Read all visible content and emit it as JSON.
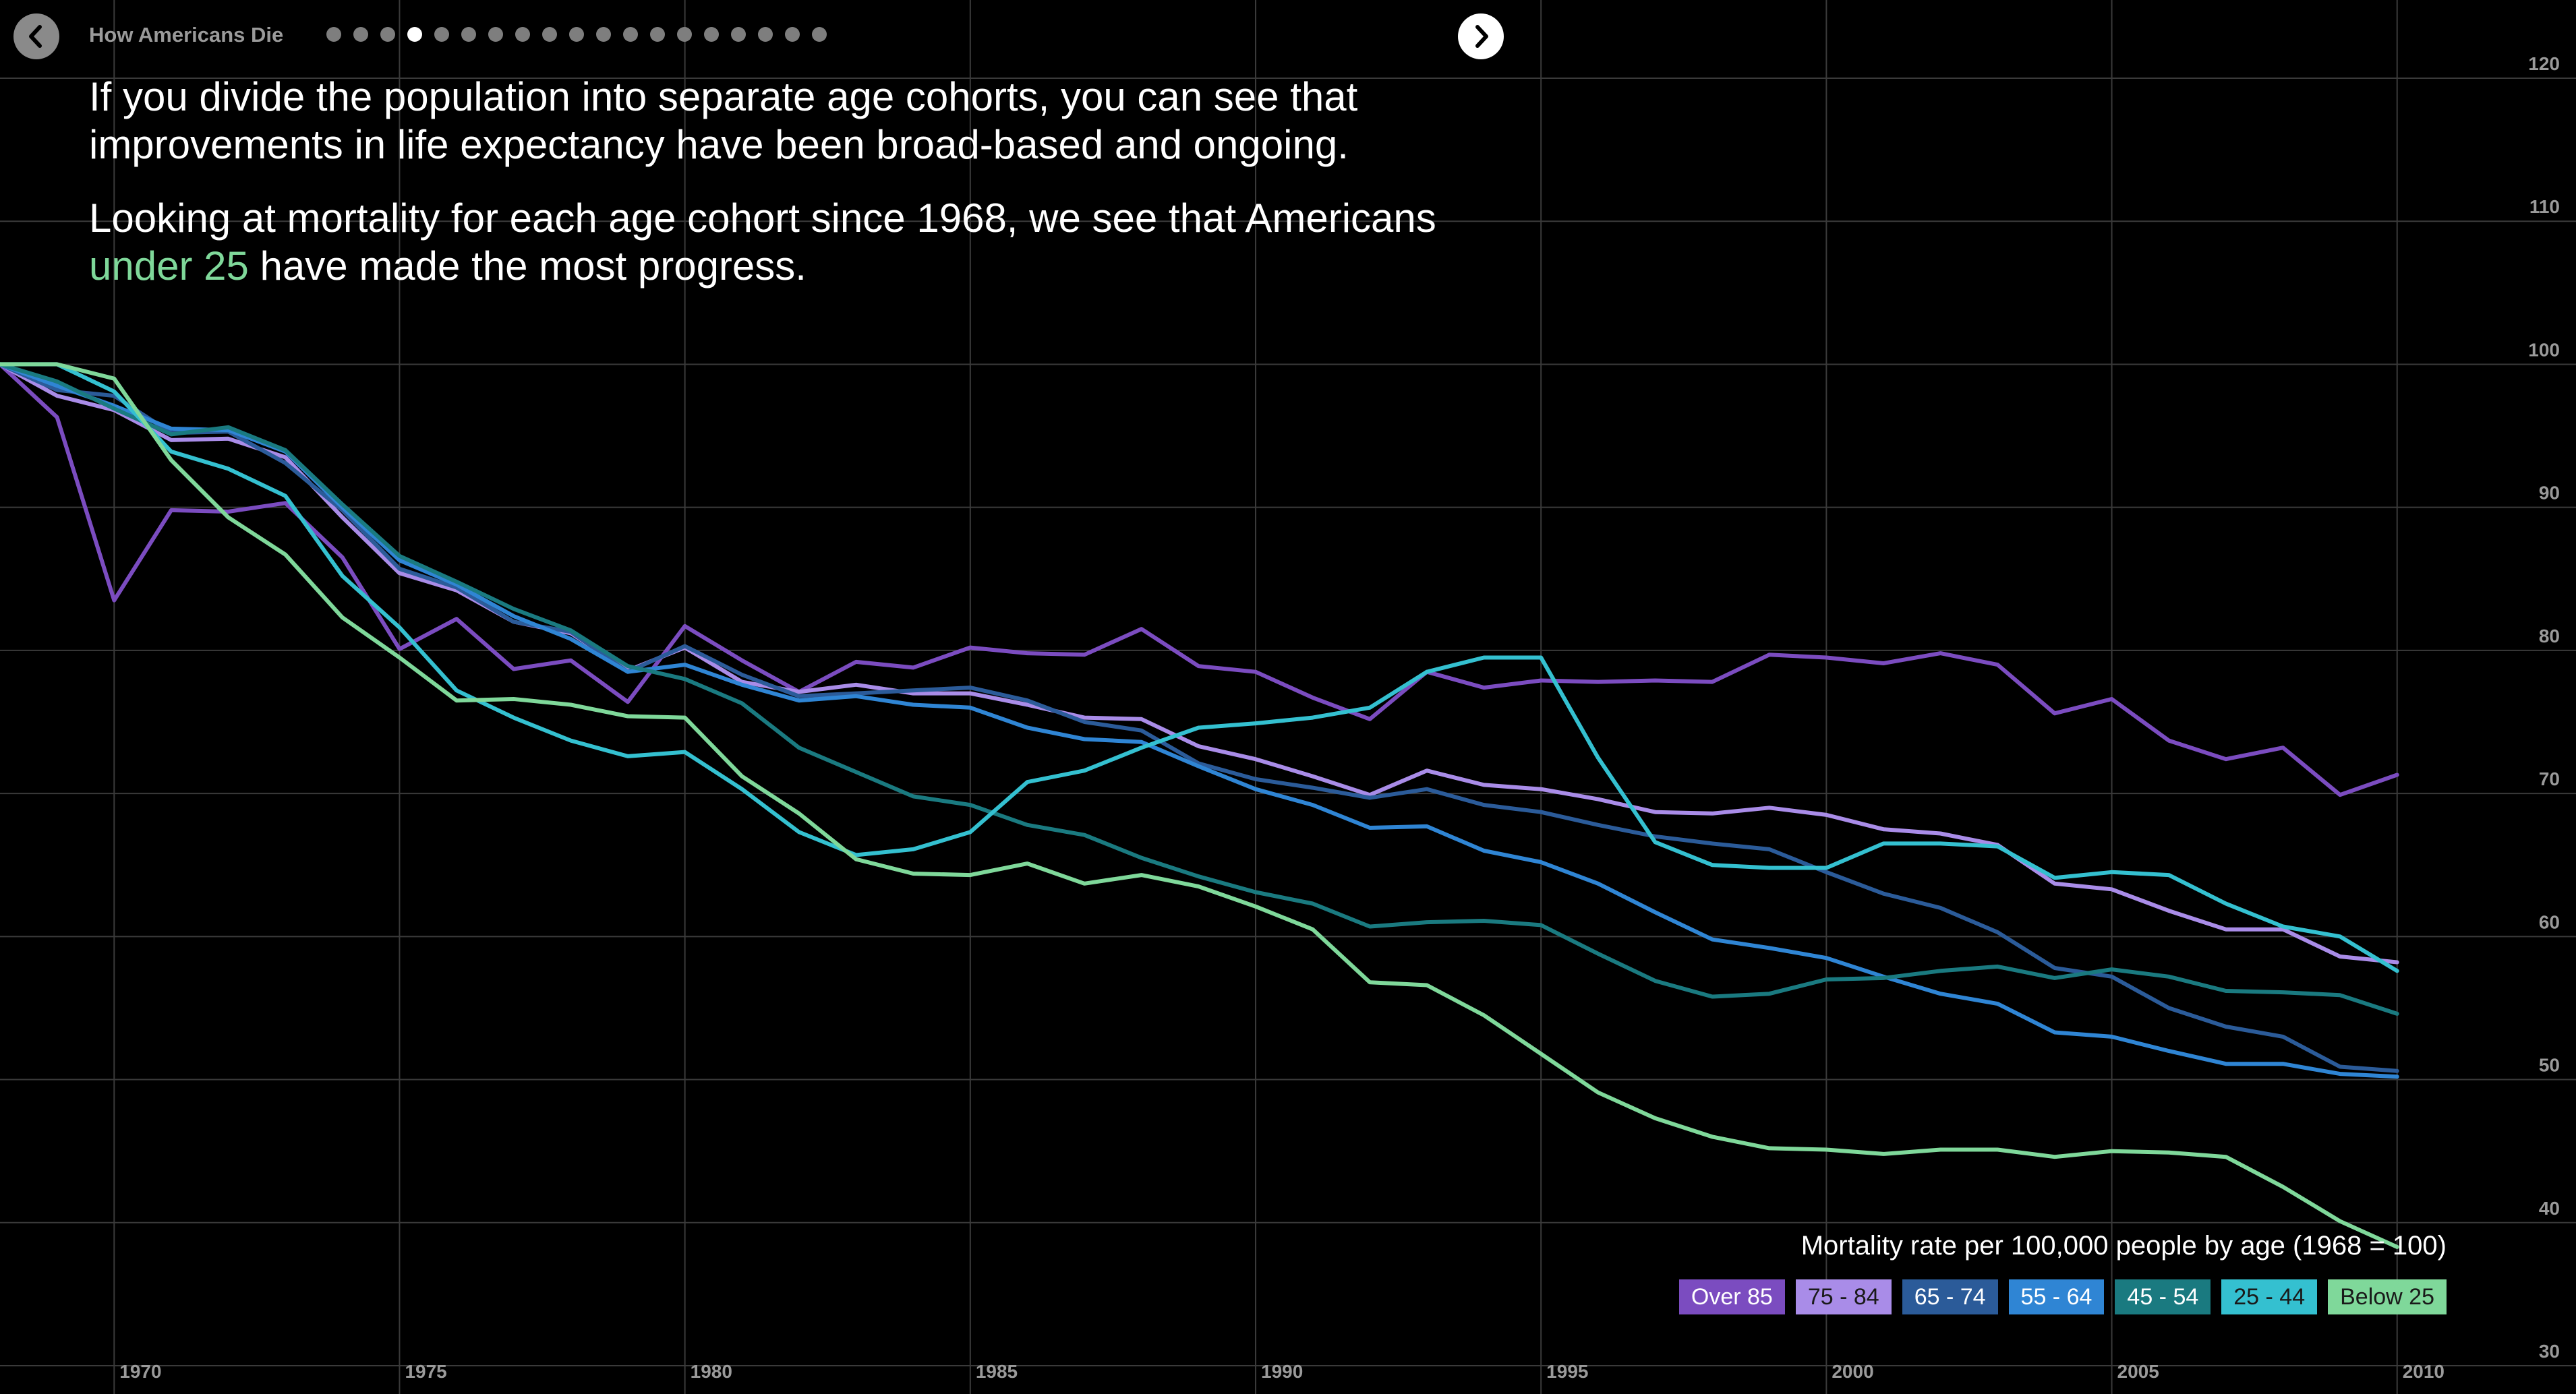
{
  "header": {
    "title": "How Americans Die",
    "dot_count": 19,
    "active_dot": 3
  },
  "narrative": {
    "p1": "If you divide the population into separate age cohorts, you can see that improvements in life expectancy have been broad-based and ongoing.",
    "p2_pre": "Looking at mortality for each age cohort since 1968, we see that Americans ",
    "p2_highlight": "under 25",
    "p2_post": " have made the most progress."
  },
  "legend": {
    "title": "Mortality rate per 100,000 people by age (1968 = 100)"
  },
  "colors": {
    "background": "#000000",
    "grid": "#3a3a3a",
    "axis_text": "#9a9a9a",
    "highlight": "#7fd89a"
  },
  "chart_data": {
    "type": "line",
    "title": "Mortality rate per 100,000 people by age (1968 = 100)",
    "xlim": [
      1968,
      2012
    ],
    "ylim": [
      30,
      120
    ],
    "x_ticks": [
      1970,
      1975,
      1980,
      1985,
      1990,
      1995,
      2000,
      2005,
      2010
    ],
    "y_ticks": [
      30,
      40,
      50,
      60,
      70,
      80,
      90,
      100,
      110,
      120
    ],
    "grid": true,
    "legend_position": "bottom-right",
    "series": [
      {
        "name": "Over 85",
        "color": "#7b4cc0",
        "text_color": "#ffffff",
        "x": [
          1968,
          1969,
          1970,
          1971,
          1972,
          1973,
          1974,
          1975,
          1976,
          1977,
          1978,
          1979,
          1980,
          1981,
          1982,
          1983,
          1984,
          1985,
          1986,
          1987,
          1988,
          1989,
          1990,
          1991,
          1992,
          1993,
          1994,
          1995,
          1996,
          1997,
          1998,
          1999,
          2000,
          2001,
          2002,
          2003,
          2004,
          2005,
          2006,
          2007,
          2008,
          2009,
          2010
        ],
        "values": [
          100,
          96.3,
          83.5,
          89.8,
          89.7,
          90.3,
          86.5,
          80.1,
          82.2,
          78.7,
          79.3,
          76.4,
          81.7,
          79.3,
          77.1,
          79.2,
          78.8,
          80.2,
          79.8,
          79.7,
          81.5,
          78.9,
          78.5,
          76.7,
          75.2,
          78.5,
          77.4,
          77.9,
          77.8,
          77.9,
          77.8,
          79.7,
          79.5,
          79.1,
          79.8,
          79.0,
          75.6,
          76.6,
          73.7,
          72.4,
          73.2,
          69.9,
          71.3
        ]
      },
      {
        "name": "75 - 84",
        "color": "#a98ce8",
        "text_color": "#1a1a1a",
        "x": [
          1968,
          1969,
          1970,
          1971,
          1972,
          1973,
          1974,
          1975,
          1976,
          1977,
          1978,
          1979,
          1980,
          1981,
          1982,
          1983,
          1984,
          1985,
          1986,
          1987,
          1988,
          1989,
          1990,
          1991,
          1992,
          1993,
          1994,
          1995,
          1996,
          1997,
          1998,
          1999,
          2000,
          2001,
          2002,
          2003,
          2004,
          2005,
          2006,
          2007,
          2008,
          2009,
          2010
        ],
        "values": [
          100,
          97.8,
          96.8,
          94.7,
          94.8,
          93.5,
          89.3,
          85.4,
          84.2,
          82.0,
          81.2,
          78.6,
          80.2,
          77.8,
          77.1,
          77.6,
          77.0,
          77.0,
          76.2,
          75.3,
          75.2,
          73.3,
          72.4,
          71.2,
          69.9,
          71.6,
          70.6,
          70.3,
          69.6,
          68.7,
          68.6,
          69.0,
          68.5,
          67.5,
          67.2,
          66.4,
          63.7,
          63.3,
          61.8,
          60.5,
          60.5,
          58.6,
          58.2
        ]
      },
      {
        "name": "65 - 74",
        "color": "#2b5b99",
        "text_color": "#ffffff",
        "x": [
          1968,
          1969,
          1970,
          1971,
          1972,
          1973,
          1974,
          1975,
          1976,
          1977,
          1978,
          1979,
          1980,
          1981,
          1982,
          1983,
          1984,
          1985,
          1986,
          1987,
          1988,
          1989,
          1990,
          1991,
          1992,
          1993,
          1994,
          1995,
          1996,
          1997,
          1998,
          1999,
          2000,
          2001,
          2002,
          2003,
          2004,
          2005,
          2006,
          2007,
          2008,
          2009,
          2010
        ],
        "values": [
          100,
          98.2,
          97.8,
          95.2,
          95.3,
          93.1,
          89.8,
          85.7,
          84.4,
          82.0,
          81.3,
          78.5,
          80.3,
          78.3,
          76.8,
          77.0,
          77.2,
          77.4,
          76.5,
          75.0,
          74.4,
          72.1,
          71.0,
          70.4,
          69.7,
          70.3,
          69.2,
          68.7,
          67.8,
          67.0,
          66.5,
          66.1,
          64.5,
          63.0,
          62.0,
          60.3,
          57.8,
          57.2,
          55.0,
          53.7,
          53.0,
          50.9,
          50.6
        ]
      },
      {
        "name": "55 - 64",
        "color": "#2f85d4",
        "text_color": "#ffffff",
        "x": [
          1968,
          1969,
          1970,
          1971,
          1972,
          1973,
          1974,
          1975,
          1976,
          1977,
          1978,
          1979,
          1980,
          1981,
          1982,
          1983,
          1984,
          1985,
          1986,
          1987,
          1988,
          1989,
          1990,
          1991,
          1992,
          1993,
          1994,
          1995,
          1996,
          1997,
          1998,
          1999,
          2000,
          2001,
          2002,
          2003,
          2004,
          2005,
          2006,
          2007,
          2008,
          2009,
          2010
        ],
        "values": [
          100,
          98.5,
          97.1,
          95.5,
          95.4,
          93.9,
          90.0,
          86.3,
          84.6,
          82.4,
          80.8,
          78.5,
          79.0,
          77.6,
          76.5,
          76.8,
          76.2,
          76.0,
          74.6,
          73.8,
          73.6,
          71.9,
          70.3,
          69.2,
          67.6,
          67.7,
          66.0,
          65.2,
          63.7,
          61.7,
          59.8,
          59.2,
          58.5,
          57.2,
          56.0,
          55.3,
          53.3,
          53.0,
          52.0,
          51.1,
          51.1,
          50.4,
          50.2
        ]
      },
      {
        "name": "45 - 54",
        "color": "#1a7a80",
        "text_color": "#ffffff",
        "x": [
          1968,
          1969,
          1970,
          1971,
          1972,
          1973,
          1974,
          1975,
          1976,
          1977,
          1978,
          1979,
          1980,
          1981,
          1982,
          1983,
          1984,
          1985,
          1986,
          1987,
          1988,
          1989,
          1990,
          1991,
          1992,
          1993,
          1994,
          1995,
          1996,
          1997,
          1998,
          1999,
          2000,
          2001,
          2002,
          2003,
          2004,
          2005,
          2006,
          2007,
          2008,
          2009,
          2010
        ],
        "values": [
          100,
          98.8,
          96.9,
          95.1,
          95.6,
          94.0,
          90.2,
          86.6,
          84.8,
          82.9,
          81.4,
          78.9,
          78.0,
          76.3,
          73.2,
          71.5,
          69.8,
          69.2,
          67.8,
          67.1,
          65.5,
          64.2,
          63.1,
          62.3,
          60.7,
          61.0,
          61.1,
          60.8,
          58.8,
          56.9,
          55.8,
          56.0,
          57.0,
          57.1,
          57.6,
          57.9,
          57.1,
          57.7,
          57.2,
          56.2,
          56.1,
          55.9,
          54.6
        ]
      },
      {
        "name": "25 - 44",
        "color": "#34c0d0",
        "text_color": "#1a1a1a",
        "x": [
          1968,
          1969,
          1970,
          1971,
          1972,
          1973,
          1974,
          1975,
          1976,
          1977,
          1978,
          1979,
          1980,
          1981,
          1982,
          1983,
          1984,
          1985,
          1986,
          1987,
          1988,
          1989,
          1990,
          1991,
          1992,
          1993,
          1994,
          1995,
          1996,
          1997,
          1998,
          1999,
          2000,
          2001,
          2002,
          2003,
          2004,
          2005,
          2006,
          2007,
          2008,
          2009,
          2010
        ],
        "values": [
          100,
          100,
          98.1,
          93.9,
          92.7,
          90.8,
          85.2,
          81.6,
          77.2,
          75.3,
          73.7,
          72.6,
          72.9,
          70.3,
          67.3,
          65.7,
          66.1,
          67.3,
          70.8,
          71.6,
          73.2,
          74.6,
          74.9,
          75.3,
          76.0,
          78.5,
          79.5,
          79.5,
          72.5,
          66.6,
          65.0,
          64.8,
          64.8,
          66.5,
          66.5,
          66.3,
          64.1,
          64.5,
          64.3,
          62.3,
          60.7,
          60.0,
          57.6
        ]
      },
      {
        "name": "Below 25",
        "color": "#7fd89a",
        "text_color": "#1a1a1a",
        "x": [
          1968,
          1969,
          1970,
          1971,
          1972,
          1973,
          1974,
          1975,
          1976,
          1977,
          1978,
          1979,
          1980,
          1981,
          1982,
          1983,
          1984,
          1985,
          1986,
          1987,
          1988,
          1989,
          1990,
          1991,
          1992,
          1993,
          1994,
          1995,
          1996,
          1997,
          1998,
          1999,
          2000,
          2001,
          2002,
          2003,
          2004,
          2005,
          2006,
          2007,
          2008,
          2009,
          2010
        ],
        "values": [
          100,
          100,
          99.0,
          93.3,
          89.3,
          86.7,
          82.3,
          79.5,
          76.5,
          76.6,
          76.2,
          75.4,
          75.3,
          71.2,
          68.6,
          65.4,
          64.4,
          64.3,
          65.1,
          63.7,
          64.3,
          63.5,
          62.1,
          60.5,
          56.8,
          56.6,
          54.5,
          51.8,
          49.1,
          47.3,
          46.0,
          45.2,
          45.1,
          44.8,
          45.1,
          45.1,
          44.6,
          45.0,
          44.9,
          44.6,
          42.5,
          40.1,
          38.3
        ]
      }
    ]
  }
}
